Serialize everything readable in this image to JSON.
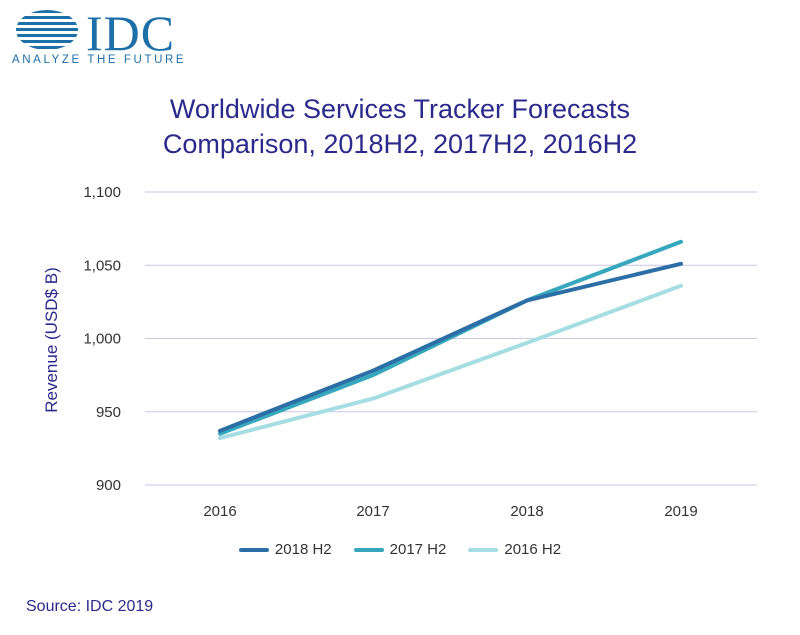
{
  "brand": {
    "name": "IDC",
    "tagline": "ANALYZE THE FUTURE",
    "color": "#1d6fa8"
  },
  "chart_data": {
    "type": "line",
    "title_lines": [
      "Worldwide Services Tracker Forecasts",
      "Comparison, 2018H2, 2017H2, 2016H2"
    ],
    "xlabel": "",
    "ylabel": "Revenue (USD$ B)",
    "categories": [
      "2016",
      "2017",
      "2018",
      "2019"
    ],
    "yticks": [
      "900",
      "950",
      "1,000",
      "1,050",
      "1,100"
    ],
    "ylim": [
      900,
      1100
    ],
    "grid": true,
    "legend_position": "bottom",
    "series": [
      {
        "name": "2018 H2",
        "color": "#2c6ea6",
        "values": [
          937,
          978,
          1026,
          1051
        ]
      },
      {
        "name": "2017 H2",
        "color": "#37a7bd",
        "values": [
          935,
          975,
          1026,
          1066
        ]
      },
      {
        "name": "2016 H2",
        "color": "#a6dde3",
        "values": [
          932,
          959,
          997,
          1036
        ]
      }
    ]
  },
  "source": "Source: IDC 2019"
}
